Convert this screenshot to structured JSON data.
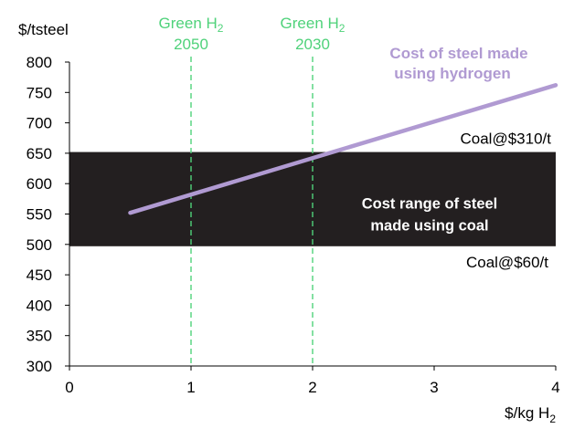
{
  "chart_data": {
    "type": "line",
    "ylabel": "$/tsteel",
    "xlabel_main": "$/kg H",
    "xlabel_sub": "2",
    "xlim": [
      0,
      4
    ],
    "ylim": [
      300,
      800
    ],
    "x_ticks": [
      0,
      1,
      2,
      3,
      4
    ],
    "y_ticks": [
      300,
      350,
      400,
      450,
      500,
      550,
      600,
      650,
      700,
      750,
      800
    ],
    "series": [
      {
        "name": "Cost of steel made using hydrogen",
        "color": "#b09ad2",
        "points": [
          {
            "x": 0.5,
            "y": 552
          },
          {
            "x": 4.0,
            "y": 762
          }
        ]
      }
    ],
    "band": {
      "label": "Cost range of steel made using coal",
      "y_low": 497,
      "y_high": 652,
      "x_from": 0,
      "x_to": 4,
      "color": "#231f20",
      "top_label": "Coal@$310/t",
      "bottom_label": "Coal@$60/t"
    },
    "vlines": [
      {
        "x": 1,
        "label_main": "Green H",
        "label_sub": "2",
        "label_year": "2050",
        "color": "#4fd27a"
      },
      {
        "x": 2,
        "label_main": "Green H",
        "label_sub": "2",
        "label_year": "2030",
        "color": "#4fd27a"
      }
    ],
    "annotations": {
      "hydrogen_line1": "Cost of steel made",
      "hydrogen_line2": "using hydrogen",
      "band_line1": "Cost range of steel",
      "band_line2": "made using coal"
    },
    "grid": false
  }
}
